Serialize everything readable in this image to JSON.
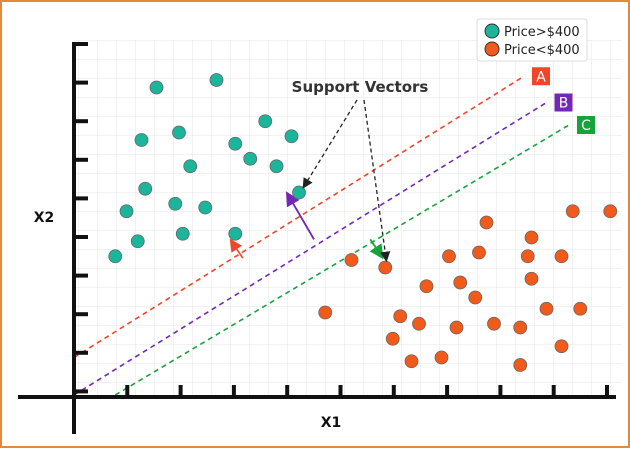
{
  "chart_data": {
    "type": "scatter",
    "xlabel": "X1",
    "ylabel": "X2",
    "annotation": "Support Vectors",
    "series": [
      {
        "name": "Price>$400",
        "color": "#1ab59a",
        "points": [
          [
            2.2,
            8.2
          ],
          [
            3.8,
            8.4
          ],
          [
            1.8,
            6.8
          ],
          [
            2.8,
            7.0
          ],
          [
            4.3,
            6.7
          ],
          [
            5.1,
            7.3
          ],
          [
            5.8,
            6.9
          ],
          [
            3.1,
            6.1
          ],
          [
            4.7,
            6.3
          ],
          [
            5.4,
            6.1
          ],
          [
            1.9,
            5.5
          ],
          [
            2.7,
            5.1
          ],
          [
            3.5,
            5.0
          ],
          [
            6.0,
            5.4
          ],
          [
            1.4,
            4.9
          ],
          [
            1.7,
            4.1
          ],
          [
            2.9,
            4.3
          ],
          [
            4.3,
            4.3
          ],
          [
            1.1,
            3.7
          ]
        ]
      },
      {
        "name": "Price<$400",
        "color": "#f05a1a",
        "points": [
          [
            8.3,
            3.4
          ],
          [
            11.0,
            4.6
          ],
          [
            13.3,
            4.9
          ],
          [
            12.2,
            4.2
          ],
          [
            14.3,
            4.9
          ],
          [
            7.4,
            3.6
          ],
          [
            10.0,
            3.7
          ],
          [
            10.8,
            3.8
          ],
          [
            12.1,
            3.7
          ],
          [
            13.0,
            3.7
          ],
          [
            9.4,
            2.9
          ],
          [
            10.3,
            3.0
          ],
          [
            12.2,
            3.1
          ],
          [
            10.7,
            2.6
          ],
          [
            12.6,
            2.3
          ],
          [
            13.5,
            2.3
          ],
          [
            6.7,
            2.2
          ],
          [
            8.7,
            2.1
          ],
          [
            9.2,
            1.9
          ],
          [
            11.2,
            1.9
          ],
          [
            10.2,
            1.8
          ],
          [
            11.9,
            1.8
          ],
          [
            8.5,
            1.5
          ],
          [
            13.0,
            1.3
          ],
          [
            9.0,
            0.9
          ],
          [
            9.8,
            1.0
          ],
          [
            11.9,
            0.8
          ]
        ]
      }
    ],
    "lines": [
      {
        "label": "A",
        "color": "#f0452a",
        "from": [
          0,
          1.0
        ],
        "to": [
          12.0,
          8.5
        ]
      },
      {
        "label": "B",
        "color": "#7426b4",
        "from": [
          0,
          0
        ],
        "to": [
          12.6,
          7.8
        ]
      },
      {
        "label": "C",
        "color": "#16a33c",
        "from": [
          1.1,
          0
        ],
        "to": [
          13.2,
          7.2
        ]
      }
    ],
    "support_vectors": [
      [
        6.0,
        5.4
      ],
      [
        4.3,
        4.3
      ],
      [
        8.3,
        3.4
      ]
    ],
    "legend_position": "top-right",
    "grid": true
  }
}
